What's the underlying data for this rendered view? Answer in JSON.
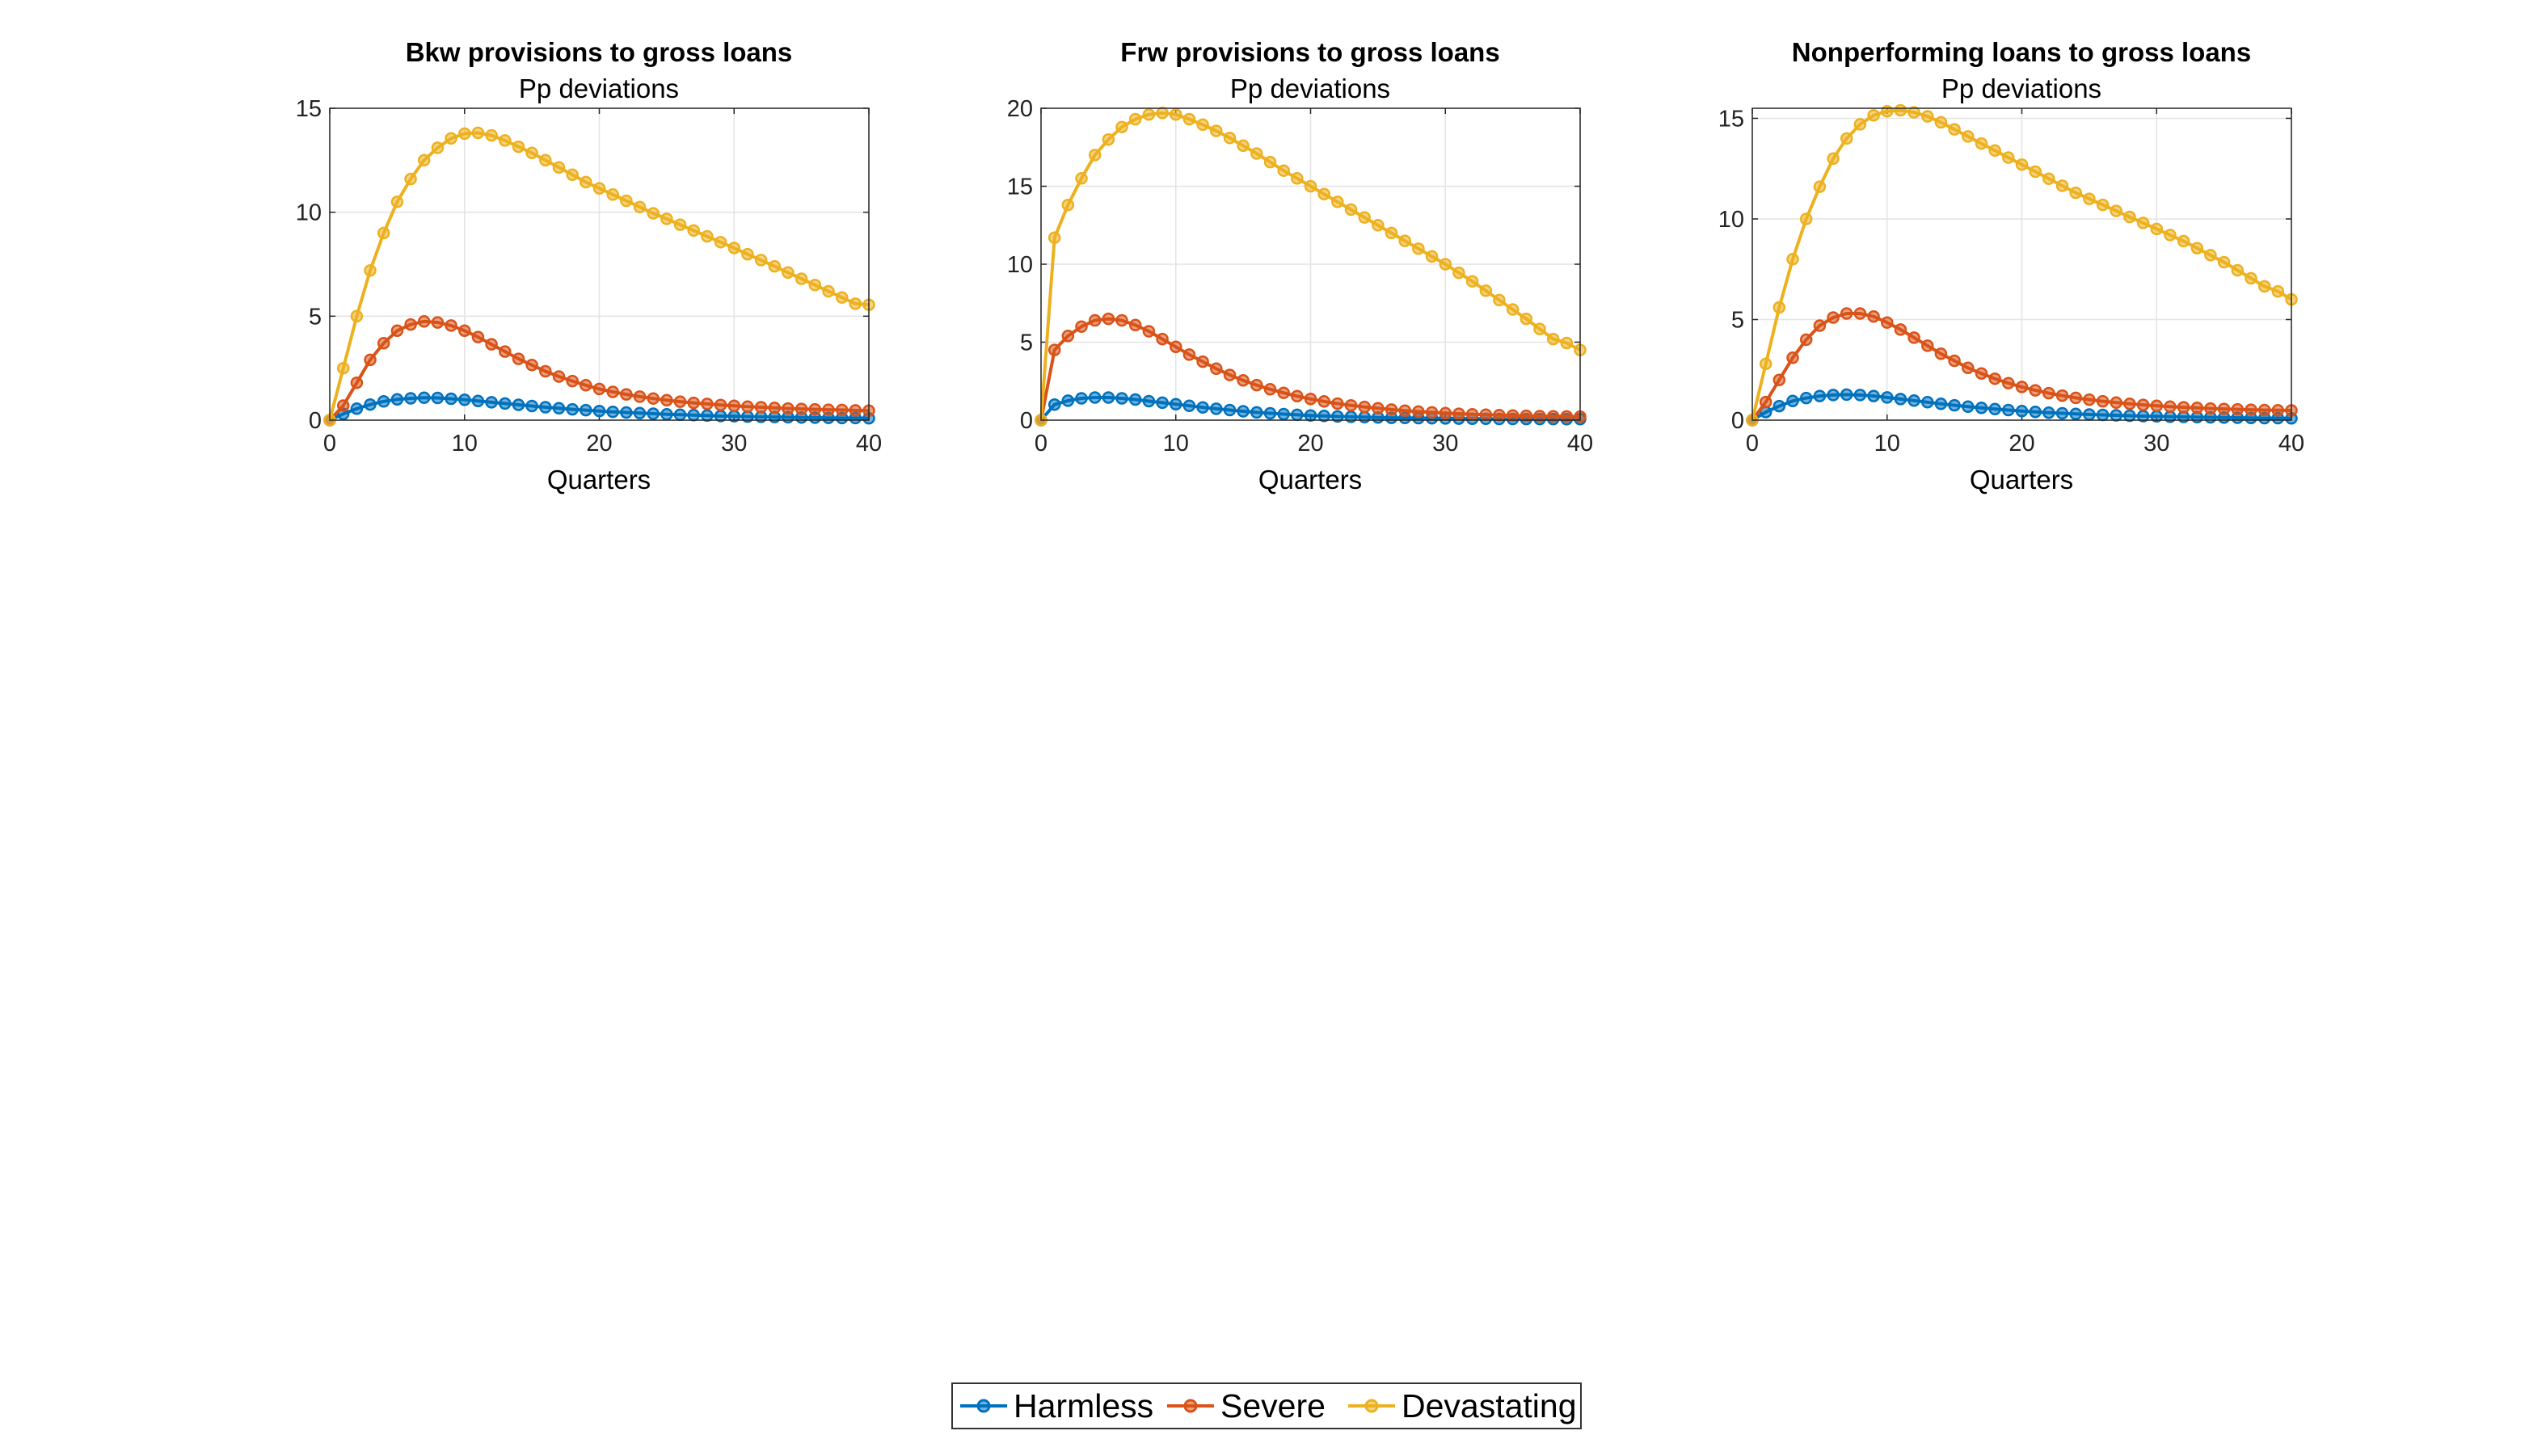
{
  "legend": {
    "items": [
      {
        "label": "Harmless",
        "color": "#0072BD"
      },
      {
        "label": "Severe",
        "color": "#D95319"
      },
      {
        "label": "Devastating",
        "color": "#EDB120"
      }
    ]
  },
  "chart_data": [
    {
      "type": "line",
      "title": "Bkw provisions to gross loans",
      "subtitle": "Pp deviations",
      "xlabel": "Quarters",
      "ylabel": "",
      "xlim": [
        0,
        40
      ],
      "ylim": [
        0,
        15
      ],
      "xticks": [
        0,
        10,
        20,
        30,
        40
      ],
      "yticks": [
        0,
        5,
        10,
        15
      ],
      "grid": true,
      "x": [
        0,
        1,
        2,
        3,
        4,
        5,
        6,
        7,
        8,
        9,
        10,
        11,
        12,
        13,
        14,
        15,
        16,
        17,
        18,
        19,
        20,
        21,
        22,
        23,
        24,
        25,
        26,
        27,
        28,
        29,
        30,
        31,
        32,
        33,
        34,
        35,
        36,
        37,
        38,
        39,
        40
      ],
      "series": [
        {
          "name": "Harmless",
          "color": "#0072BD",
          "values": [
            0,
            0.3,
            0.55,
            0.75,
            0.9,
            1.0,
            1.05,
            1.08,
            1.07,
            1.03,
            0.98,
            0.92,
            0.86,
            0.8,
            0.74,
            0.68,
            0.62,
            0.57,
            0.52,
            0.48,
            0.44,
            0.4,
            0.37,
            0.34,
            0.31,
            0.28,
            0.26,
            0.24,
            0.22,
            0.2,
            0.19,
            0.17,
            0.16,
            0.15,
            0.14,
            0.13,
            0.12,
            0.11,
            0.1,
            0.1,
            0.09
          ]
        },
        {
          "name": "Severe",
          "color": "#D95319",
          "values": [
            0,
            0.7,
            1.8,
            2.9,
            3.7,
            4.3,
            4.6,
            4.75,
            4.7,
            4.55,
            4.3,
            4.0,
            3.65,
            3.3,
            2.95,
            2.65,
            2.35,
            2.1,
            1.88,
            1.68,
            1.5,
            1.36,
            1.24,
            1.13,
            1.04,
            0.96,
            0.89,
            0.83,
            0.78,
            0.73,
            0.69,
            0.65,
            0.62,
            0.59,
            0.56,
            0.54,
            0.52,
            0.5,
            0.49,
            0.47,
            0.46
          ]
        },
        {
          "name": "Devastating",
          "color": "#EDB120",
          "values": [
            0,
            2.5,
            5.0,
            7.2,
            9.0,
            10.5,
            11.6,
            12.5,
            13.1,
            13.55,
            13.78,
            13.82,
            13.7,
            13.45,
            13.15,
            12.85,
            12.5,
            12.15,
            11.8,
            11.45,
            11.15,
            10.85,
            10.55,
            10.25,
            9.95,
            9.68,
            9.4,
            9.12,
            8.84,
            8.56,
            8.28,
            7.98,
            7.7,
            7.4,
            7.1,
            6.8,
            6.5,
            6.2,
            5.9,
            5.6,
            5.55
          ]
        }
      ]
    },
    {
      "type": "line",
      "title": "Frw provisions to gross loans",
      "subtitle": "Pp deviations",
      "xlabel": "Quarters",
      "ylabel": "",
      "xlim": [
        0,
        40
      ],
      "ylim": [
        0,
        20
      ],
      "xticks": [
        0,
        10,
        20,
        30,
        40
      ],
      "yticks": [
        0,
        5,
        10,
        15,
        20
      ],
      "grid": true,
      "x": [
        0,
        1,
        2,
        3,
        4,
        5,
        6,
        7,
        8,
        9,
        10,
        11,
        12,
        13,
        14,
        15,
        16,
        17,
        18,
        19,
        20,
        21,
        22,
        23,
        24,
        25,
        26,
        27,
        28,
        29,
        30,
        31,
        32,
        33,
        34,
        35,
        36,
        37,
        38,
        39,
        40
      ],
      "series": [
        {
          "name": "Harmless",
          "color": "#0072BD",
          "values": [
            0,
            1.0,
            1.25,
            1.4,
            1.45,
            1.45,
            1.4,
            1.32,
            1.22,
            1.12,
            1.02,
            0.92,
            0.82,
            0.73,
            0.65,
            0.57,
            0.5,
            0.44,
            0.39,
            0.34,
            0.3,
            0.27,
            0.24,
            0.21,
            0.19,
            0.17,
            0.15,
            0.14,
            0.13,
            0.12,
            0.11,
            0.1,
            0.09,
            0.09,
            0.08,
            0.08,
            0.07,
            0.07,
            0.07,
            0.06,
            0.06
          ]
        },
        {
          "name": "Severe",
          "color": "#D95319",
          "values": [
            0,
            4.5,
            5.4,
            6.0,
            6.4,
            6.5,
            6.4,
            6.1,
            5.7,
            5.2,
            4.7,
            4.2,
            3.75,
            3.3,
            2.9,
            2.55,
            2.25,
            1.98,
            1.75,
            1.54,
            1.36,
            1.2,
            1.06,
            0.95,
            0.85,
            0.76,
            0.68,
            0.61,
            0.55,
            0.5,
            0.45,
            0.41,
            0.38,
            0.35,
            0.32,
            0.3,
            0.28,
            0.26,
            0.25,
            0.24,
            0.23
          ]
        },
        {
          "name": "Devastating",
          "color": "#EDB120",
          "values": [
            0,
            11.7,
            13.8,
            15.5,
            17.0,
            18.0,
            18.8,
            19.3,
            19.6,
            19.7,
            19.6,
            19.3,
            18.95,
            18.55,
            18.1,
            17.6,
            17.1,
            16.55,
            16.0,
            15.5,
            15.0,
            14.5,
            14.0,
            13.5,
            13.0,
            12.5,
            12.0,
            11.5,
            11.0,
            10.5,
            10.0,
            9.45,
            8.9,
            8.3,
            7.7,
            7.1,
            6.5,
            5.85,
            5.2,
            4.95,
            4.5
          ]
        }
      ]
    },
    {
      "type": "line",
      "title": "Nonperforming loans to gross loans",
      "subtitle": "Pp deviations",
      "xlabel": "Quarters",
      "ylabel": "",
      "xlim": [
        0,
        40
      ],
      "ylim": [
        0,
        15.5
      ],
      "xticks": [
        0,
        10,
        20,
        30,
        40
      ],
      "yticks": [
        0,
        5,
        10,
        15
      ],
      "grid": true,
      "x": [
        0,
        1,
        2,
        3,
        4,
        5,
        6,
        7,
        8,
        9,
        10,
        11,
        12,
        13,
        14,
        15,
        16,
        17,
        18,
        19,
        20,
        21,
        22,
        23,
        24,
        25,
        26,
        27,
        28,
        29,
        30,
        31,
        32,
        33,
        34,
        35,
        36,
        37,
        38,
        39,
        40
      ],
      "series": [
        {
          "name": "Harmless",
          "color": "#0072BD",
          "values": [
            0,
            0.4,
            0.7,
            0.95,
            1.1,
            1.2,
            1.25,
            1.27,
            1.25,
            1.2,
            1.13,
            1.05,
            0.97,
            0.89,
            0.81,
            0.74,
            0.67,
            0.61,
            0.55,
            0.5,
            0.45,
            0.41,
            0.37,
            0.34,
            0.31,
            0.28,
            0.26,
            0.24,
            0.22,
            0.2,
            0.19,
            0.17,
            0.16,
            0.15,
            0.14,
            0.13,
            0.12,
            0.11,
            0.1,
            0.1,
            0.09
          ]
        },
        {
          "name": "Severe",
          "color": "#D95319",
          "values": [
            0,
            0.9,
            2.0,
            3.1,
            4.0,
            4.7,
            5.1,
            5.3,
            5.3,
            5.15,
            4.85,
            4.5,
            4.1,
            3.7,
            3.3,
            2.95,
            2.6,
            2.32,
            2.06,
            1.84,
            1.65,
            1.48,
            1.34,
            1.22,
            1.11,
            1.02,
            0.94,
            0.87,
            0.81,
            0.76,
            0.71,
            0.67,
            0.64,
            0.61,
            0.58,
            0.56,
            0.54,
            0.52,
            0.5,
            0.49,
            0.48
          ]
        },
        {
          "name": "Devastating",
          "color": "#EDB120",
          "values": [
            0,
            2.8,
            5.6,
            8.0,
            10.0,
            11.6,
            13.0,
            14.0,
            14.7,
            15.15,
            15.35,
            15.4,
            15.3,
            15.1,
            14.8,
            14.45,
            14.1,
            13.75,
            13.4,
            13.05,
            12.7,
            12.35,
            12.0,
            11.65,
            11.3,
            11.0,
            10.7,
            10.4,
            10.1,
            9.8,
            9.5,
            9.2,
            8.9,
            8.55,
            8.2,
            7.85,
            7.45,
            7.05,
            6.65,
            6.4,
            6.0
          ]
        }
      ]
    }
  ]
}
